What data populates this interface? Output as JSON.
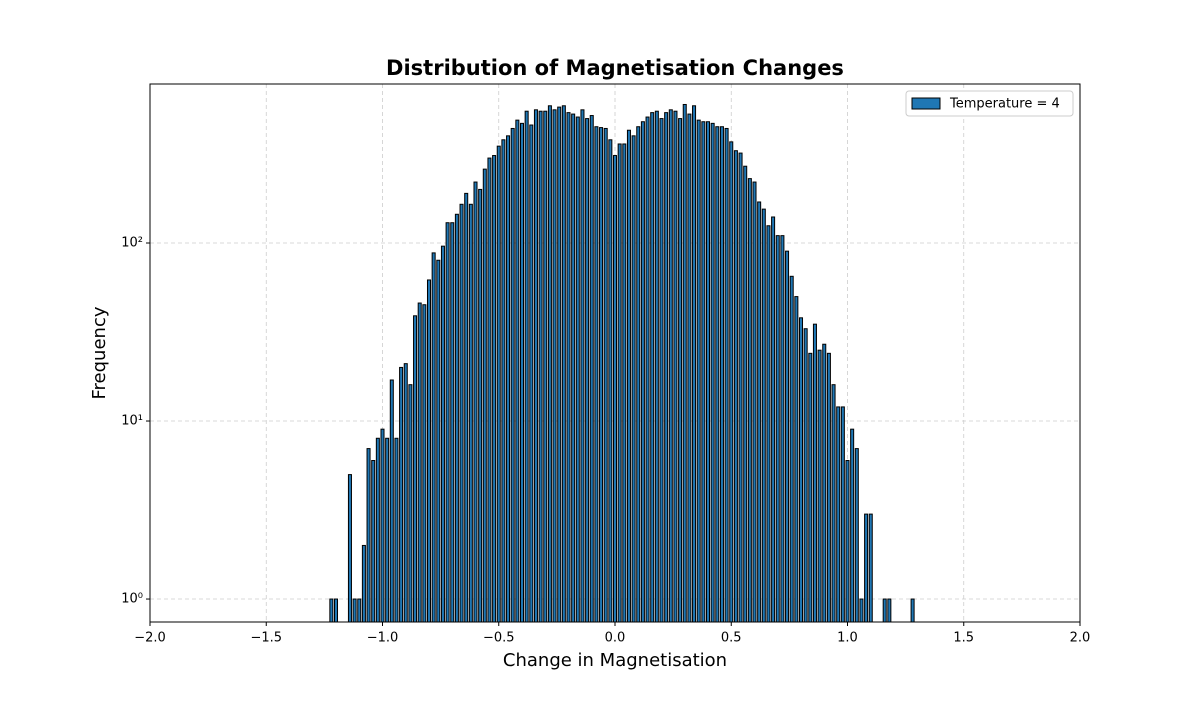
{
  "chart_data": {
    "type": "histogram",
    "title": "Distribution of Magnetisation Changes",
    "x_label": "Change in Magnetisation",
    "y_label": "Frequency",
    "bins": [
      -1.23,
      -1.21,
      -1.19,
      -1.17,
      -1.15,
      -1.13,
      -1.11,
      -1.09,
      -1.07,
      -1.05,
      -1.03,
      -1.01,
      -0.99,
      -0.97,
      -0.95,
      -0.93,
      -0.91,
      -0.89,
      -0.87,
      -0.85,
      -0.83,
      -0.81,
      -0.79,
      -0.77,
      -0.75,
      -0.73,
      -0.71,
      -0.69,
      -0.67,
      -0.65,
      -0.63,
      -0.61,
      -0.59,
      -0.57,
      -0.55,
      -0.53,
      -0.51,
      -0.49,
      -0.47,
      -0.45,
      -0.43,
      -0.41,
      -0.39,
      -0.37,
      -0.35,
      -0.33,
      -0.31,
      -0.29,
      -0.27,
      -0.25,
      -0.23,
      -0.21,
      -0.19,
      -0.17,
      -0.15,
      -0.13,
      -0.11,
      -0.09,
      -0.07,
      -0.05,
      -0.03,
      -0.01,
      0.01,
      0.03,
      0.05,
      0.07,
      0.09,
      0.11,
      0.13,
      0.15,
      0.17,
      0.19,
      0.21,
      0.23,
      0.25,
      0.27,
      0.29,
      0.31,
      0.33,
      0.35,
      0.37,
      0.39,
      0.41,
      0.43,
      0.45,
      0.47,
      0.49,
      0.51,
      0.53,
      0.55,
      0.57,
      0.59,
      0.61,
      0.63,
      0.65,
      0.67,
      0.69,
      0.71,
      0.73,
      0.75,
      0.77,
      0.79,
      0.81,
      0.83,
      0.85,
      0.87,
      0.89,
      0.91,
      0.93,
      0.95,
      0.97,
      0.99,
      1.01,
      1.03,
      1.05,
      1.07,
      1.09,
      1.11,
      1.13,
      1.15,
      1.17,
      1.19,
      1.21,
      1.23,
      1.25,
      1.27,
      1.29
    ],
    "series": [
      {
        "name": "Temperature = 4",
        "color": "#1f77b4",
        "edgecolor": "#000000",
        "values": [
          1,
          1,
          0,
          0,
          5,
          1,
          1,
          2,
          7,
          6,
          8,
          9,
          8,
          17,
          8,
          20,
          21,
          16,
          39,
          46,
          45,
          62,
          88,
          80,
          96,
          130,
          130,
          145,
          165,
          190,
          165,
          220,
          200,
          260,
          300,
          310,
          350,
          380,
          400,
          440,
          490,
          470,
          550,
          460,
          560,
          550,
          550,
          590,
          560,
          580,
          590,
          540,
          530,
          510,
          560,
          500,
          520,
          450,
          445,
          440,
          380,
          310,
          360,
          360,
          430,
          400,
          450,
          480,
          510,
          540,
          550,
          500,
          540,
          560,
          550,
          500,
          600,
          530,
          590,
          490,
          480,
          480,
          470,
          450,
          450,
          440,
          370,
          330,
          320,
          270,
          230,
          220,
          170,
          155,
          125,
          140,
          110,
          110,
          90,
          65,
          50,
          38,
          33,
          24,
          35,
          25,
          27,
          24,
          16,
          12,
          12,
          6,
          9,
          7,
          1,
          3,
          3,
          0,
          0,
          1,
          1,
          0,
          0,
          0,
          0,
          1
        ]
      }
    ],
    "xlim": [
      -2.0,
      2.0
    ],
    "xticks": [
      {
        "value": -2.0,
        "label": "−2.0"
      },
      {
        "value": -1.5,
        "label": "−1.5"
      },
      {
        "value": -1.0,
        "label": "−1.0"
      },
      {
        "value": -0.5,
        "label": "−0.5"
      },
      {
        "value": 0.0,
        "label": "0.0"
      },
      {
        "value": 0.5,
        "label": "0.5"
      },
      {
        "value": 1.0,
        "label": "1.0"
      },
      {
        "value": 1.5,
        "label": "1.5"
      },
      {
        "value": 2.0,
        "label": "2.0"
      }
    ],
    "ylim": [
      0.743,
      782
    ],
    "yticks": [
      {
        "value": 1,
        "label": "10⁰"
      },
      {
        "value": 10,
        "label": "10¹"
      },
      {
        "value": 100,
        "label": "10²"
      }
    ],
    "yscale": "log",
    "grid": true,
    "legend": "upper right"
  }
}
